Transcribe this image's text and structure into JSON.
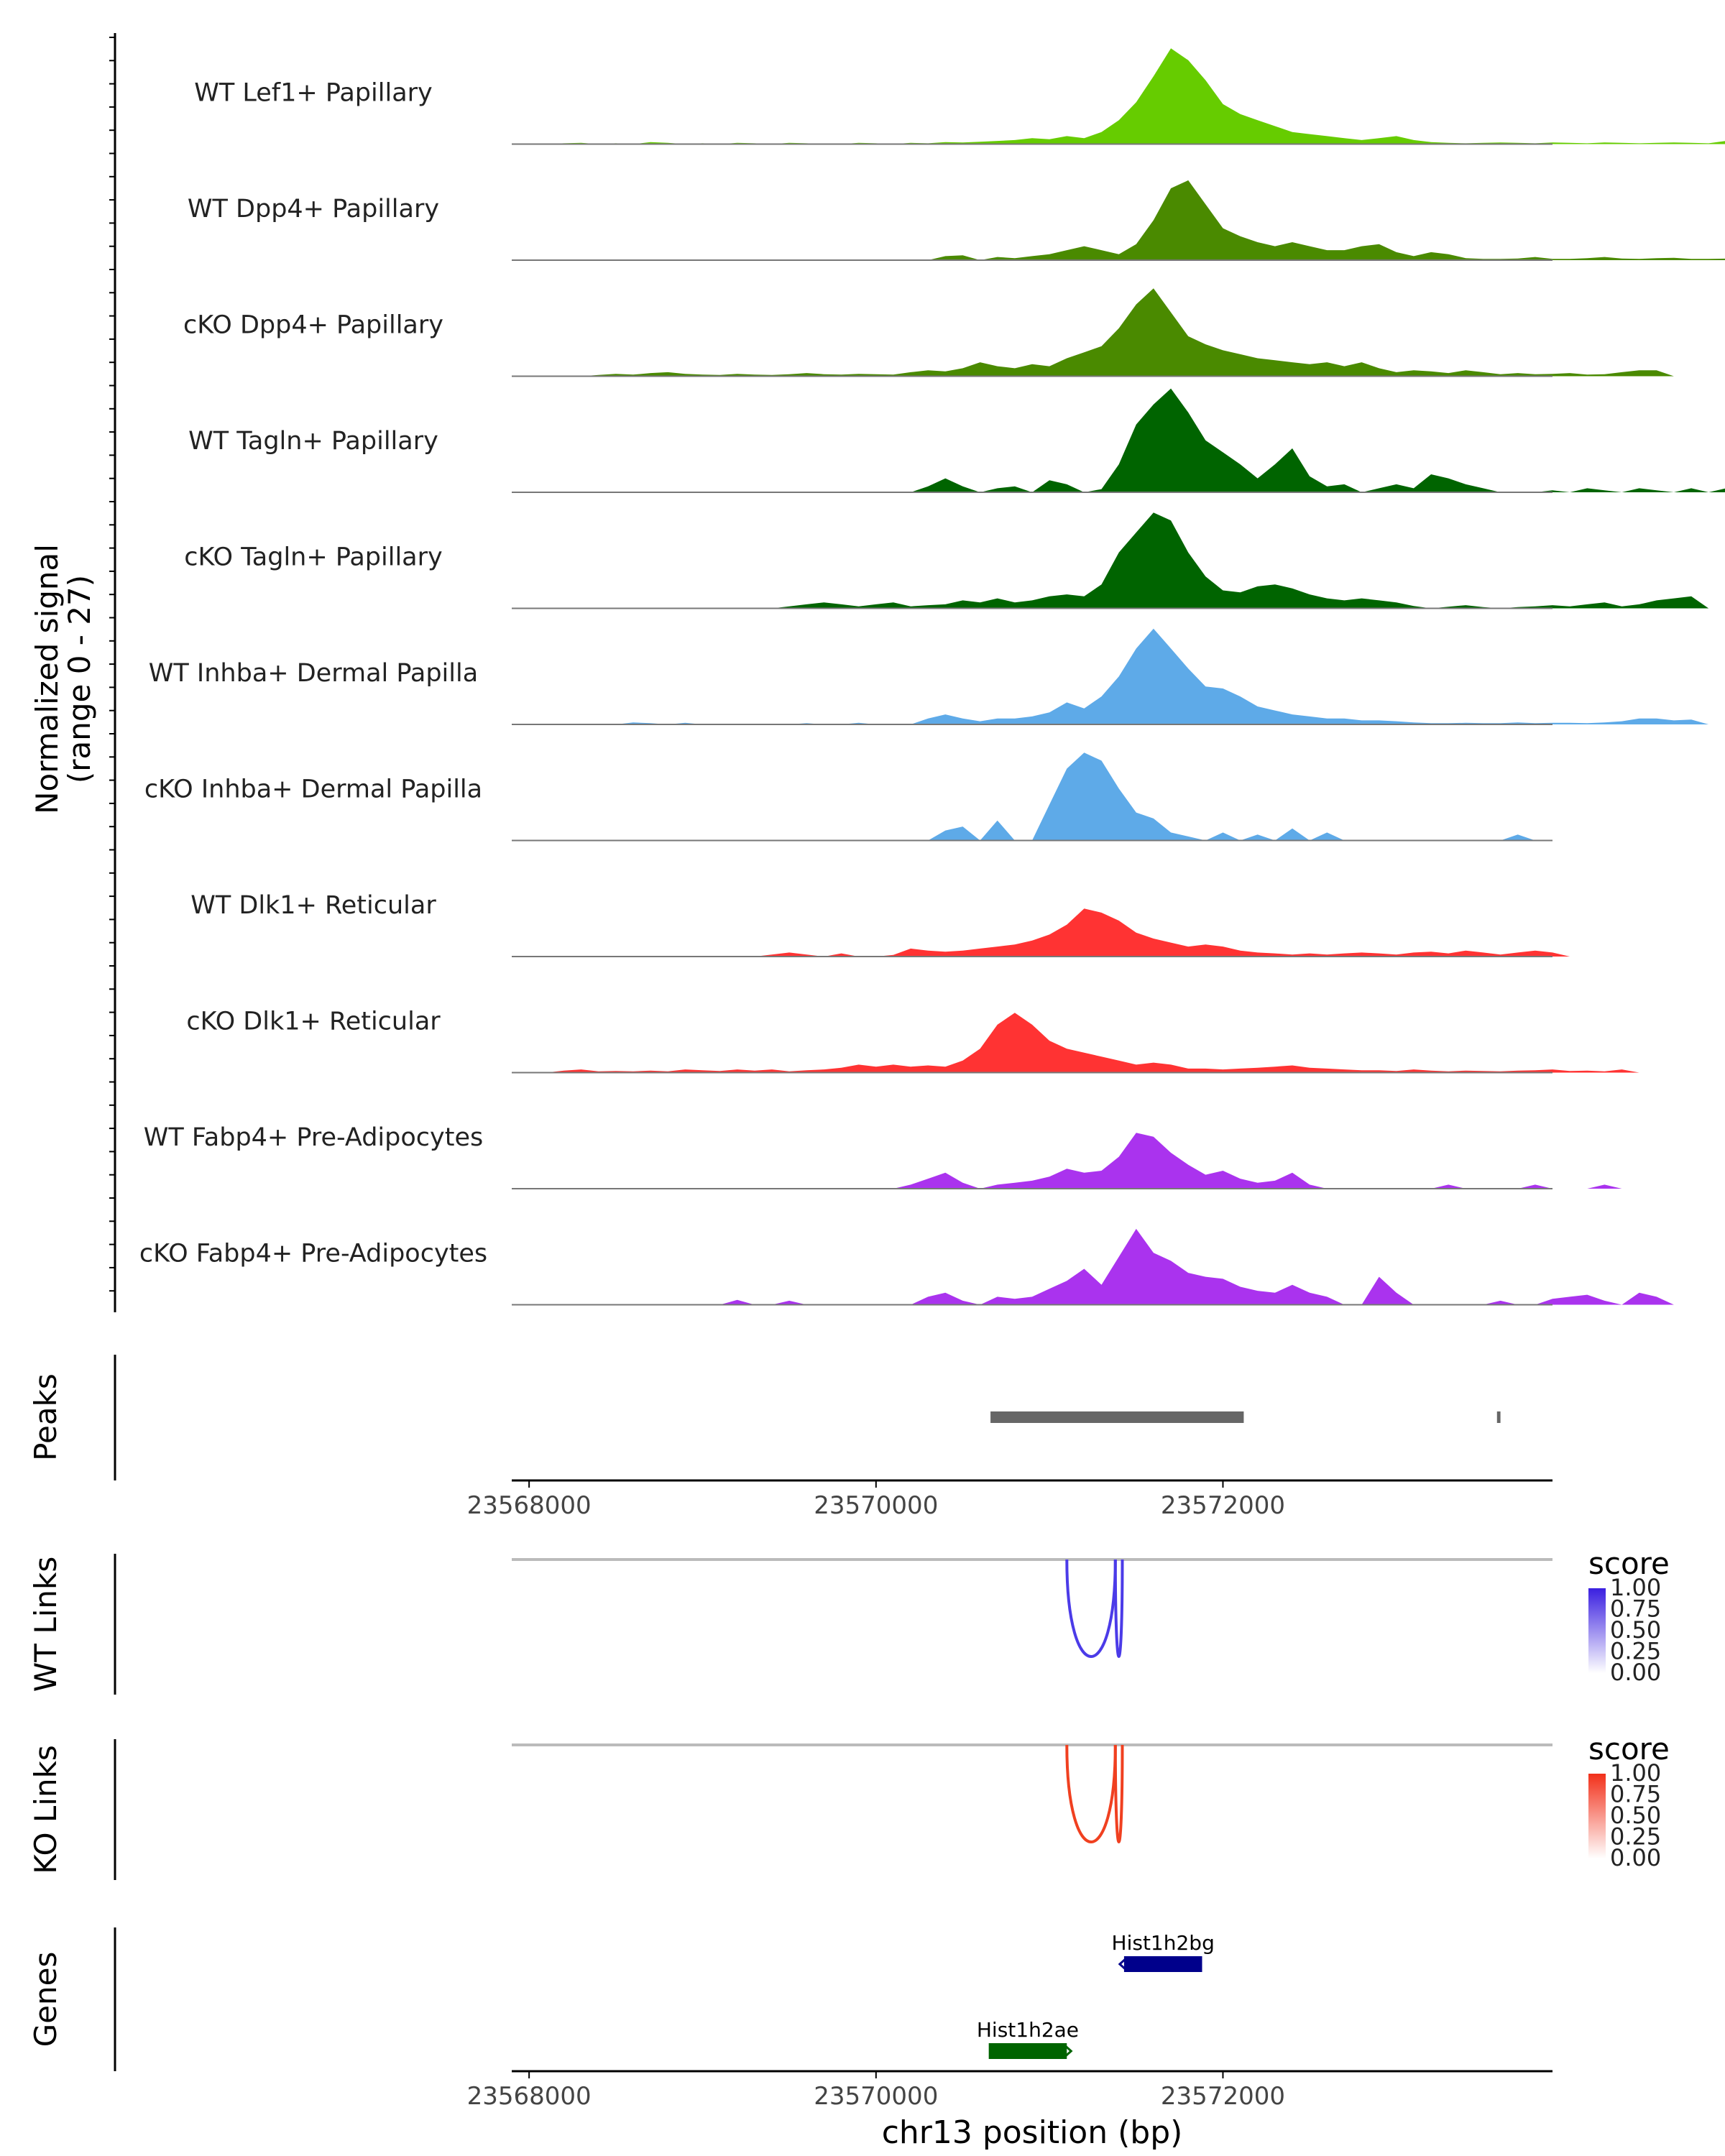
{
  "chart_data": {
    "type": "area",
    "title": "",
    "xlabel": "chr13 position (bp)",
    "ylabel": "Normalized signal",
    "ylabel_range": "(range 0 - 27)",
    "xlim": [
      23567900,
      23573900
    ],
    "ylim": [
      0,
      27
    ],
    "x_ticks": [
      23568000,
      23570000,
      23572000
    ],
    "x_tick_labels": [
      "23568000",
      "23570000",
      "23572000"
    ],
    "x_bins_start": 23568000,
    "x_bins_step": 100,
    "tracks": [
      {
        "name": "WT Lef1+ Papillary",
        "color": "#66CC00",
        "values": [
          0,
          0,
          0.2,
          0.3,
          0,
          0.2,
          0,
          0.5,
          0.3,
          0,
          0.2,
          0,
          0.3,
          0.2,
          0,
          0.3,
          0.2,
          0,
          0,
          0.3,
          0.2,
          0,
          0.3,
          0.2,
          0.5,
          0.4,
          0.6,
          0.8,
          1.0,
          1.5,
          1.2,
          2.0,
          1.5,
          3.0,
          6.0,
          10.5,
          17.0,
          24.0,
          21.0,
          16.0,
          10.0,
          7.5,
          6.0,
          4.5,
          3.0,
          2.5,
          2.0,
          1.5,
          1.0,
          1.5,
          2.0,
          1.0,
          0.5,
          0.3,
          0.2,
          0.3,
          0.4,
          0.3,
          0.2,
          0.4,
          0.3,
          0.2,
          0.4,
          0.3,
          0.2,
          0.3,
          0.4,
          0.3,
          0.2,
          0.8,
          0,
          0,
          0,
          0,
          0,
          0,
          0,
          0,
          0,
          0
        ]
      },
      {
        "name": "WT Dpp4+ Papillary",
        "color": "#4A8A00",
        "values": [
          0,
          0,
          0,
          0,
          0,
          0,
          0,
          0,
          0,
          0,
          0,
          0,
          0,
          0,
          0,
          0,
          0,
          0,
          0,
          0,
          0,
          0,
          0,
          0,
          1.0,
          1.2,
          0,
          0.8,
          0.5,
          1.0,
          1.5,
          2.5,
          3.5,
          2.5,
          1.5,
          4.0,
          10.0,
          18.0,
          20.0,
          14.0,
          8.0,
          6.0,
          4.5,
          3.5,
          4.5,
          3.5,
          2.5,
          2.5,
          3.5,
          4.0,
          2.0,
          1.0,
          2.0,
          1.5,
          0.5,
          0.3,
          0.3,
          0.4,
          0.8,
          0.3,
          0.3,
          0.5,
          0.8,
          0.4,
          0.3,
          0.5,
          0.6,
          0.3,
          0.3,
          0.4,
          0,
          0,
          0,
          0,
          0,
          0,
          0,
          0,
          0,
          0
        ]
      },
      {
        "name": "cKO Dpp4+ Papillary",
        "color": "#4A8A00",
        "values": [
          0,
          0,
          0,
          0,
          0.3,
          0.6,
          0.4,
          0.8,
          1.0,
          0.6,
          0.4,
          0.3,
          0.6,
          0.4,
          0.3,
          0.5,
          0.8,
          0.5,
          0.4,
          0.6,
          0.5,
          0.4,
          1.0,
          1.5,
          1.2,
          2.0,
          3.5,
          2.5,
          2.0,
          3.0,
          2.5,
          4.5,
          6.0,
          7.5,
          12.0,
          18.0,
          22.0,
          16.0,
          10.0,
          8.0,
          6.5,
          5.5,
          4.5,
          4.0,
          3.5,
          3.0,
          3.5,
          2.5,
          3.5,
          2.0,
          1.0,
          1.5,
          1.2,
          0.8,
          1.5,
          1.0,
          0.5,
          0.8,
          0.5,
          0.6,
          0.8,
          0.4,
          0.5,
          1.0,
          1.5,
          1.5,
          0,
          0,
          0,
          0,
          0,
          0,
          0,
          0,
          0,
          0,
          0,
          0,
          0,
          0
        ]
      },
      {
        "name": "WT Tagln+ Papillary",
        "color": "#006400",
        "values": [
          0,
          0,
          0,
          0,
          0,
          0,
          0,
          0,
          0,
          0,
          0,
          0,
          0,
          0,
          0,
          0,
          0,
          0,
          0,
          0,
          0,
          0,
          0,
          1.5,
          3.5,
          1.5,
          0,
          1.0,
          1.5,
          0,
          3.0,
          2.0,
          0,
          0.8,
          7.0,
          17.0,
          22.0,
          26.0,
          20.0,
          13.0,
          10.0,
          7.0,
          3.5,
          7.0,
          11.0,
          4.0,
          1.5,
          2.0,
          0,
          1.0,
          2.0,
          1.0,
          4.5,
          3.5,
          2.0,
          1.0,
          0,
          0,
          0,
          0.5,
          0,
          1.0,
          0.5,
          0,
          1.0,
          0.5,
          0,
          1.0,
          0,
          1.0,
          0,
          0,
          0,
          0,
          0,
          0,
          0,
          0,
          0,
          0
        ]
      },
      {
        "name": "cKO Tagln+ Papillary",
        "color": "#006400",
        "values": [
          0,
          0,
          0,
          0,
          0,
          0,
          0,
          0,
          0,
          0,
          0,
          0,
          0,
          0,
          0,
          0.5,
          1.0,
          1.5,
          1.0,
          0.5,
          1.0,
          1.5,
          0.5,
          0.8,
          1.0,
          2.0,
          1.5,
          2.5,
          1.5,
          2.0,
          3.0,
          3.5,
          3.0,
          6.0,
          14.0,
          19.0,
          24.0,
          22.0,
          14.0,
          8.0,
          4.5,
          4.0,
          5.5,
          6.0,
          5.0,
          3.5,
          2.5,
          2.0,
          2.5,
          2.0,
          1.5,
          0.6,
          0,
          0.4,
          0.8,
          0.3,
          0,
          0.3,
          0.5,
          0.8,
          0.5,
          1.0,
          1.5,
          0.5,
          1.0,
          2.0,
          2.5,
          3.0,
          0,
          0,
          0,
          0,
          0,
          0,
          0,
          0,
          0,
          0,
          0,
          0
        ]
      },
      {
        "name": "WT Inhba+ Dermal Papilla",
        "color": "#5EAAE8",
        "values": [
          0,
          0,
          0,
          0,
          0,
          0,
          0.5,
          0.3,
          0,
          0.4,
          0,
          0,
          0,
          0,
          0,
          0,
          0.3,
          0,
          0,
          0.4,
          0,
          0,
          0,
          1.5,
          2.5,
          1.5,
          0.8,
          1.5,
          1.5,
          2.0,
          3.0,
          5.5,
          4.0,
          7.0,
          12.0,
          19.0,
          24.0,
          19.0,
          14.0,
          9.5,
          9.0,
          7.0,
          4.5,
          3.5,
          2.5,
          2.0,
          1.5,
          1.5,
          1.0,
          1.0,
          0.8,
          0.5,
          0.3,
          0.3,
          0.4,
          0.3,
          0.3,
          0.5,
          0.3,
          0.4,
          0.4,
          0.3,
          0.5,
          0.8,
          1.5,
          1.5,
          1.0,
          1.2,
          0,
          0,
          0,
          0,
          0,
          0,
          0,
          0,
          0,
          0,
          0,
          0
        ]
      },
      {
        "name": "cKO Inhba+ Dermal Papilla",
        "color": "#5EAAE8",
        "values": [
          0,
          0,
          0,
          0,
          0,
          0,
          0,
          0,
          0,
          0,
          0,
          0,
          0,
          0,
          0,
          0,
          0,
          0,
          0,
          0,
          0,
          0,
          0,
          0,
          2.5,
          3.5,
          0,
          5.0,
          0,
          0,
          9.0,
          18.0,
          22.0,
          20.0,
          13.0,
          7.0,
          5.5,
          2.0,
          1.0,
          0,
          2.0,
          0,
          1.5,
          0,
          3.0,
          0,
          2.0,
          0,
          0,
          0,
          0,
          0,
          0,
          0,
          0,
          0,
          0,
          1.5,
          0,
          0,
          0,
          0,
          0,
          0,
          0,
          0,
          0,
          0,
          0,
          0,
          0,
          0,
          0,
          0,
          0,
          0,
          0,
          0,
          0,
          0
        ]
      },
      {
        "name": "WT Dlk1+ Reticular",
        "color": "#FF3333",
        "values": [
          0,
          0,
          0,
          0,
          0,
          0,
          0,
          0,
          0,
          0,
          0,
          0,
          0,
          0,
          0.5,
          1.0,
          0.5,
          0,
          0.8,
          0,
          0,
          0.4,
          2.0,
          1.5,
          1.2,
          1.5,
          2.0,
          2.5,
          3.0,
          4.0,
          5.5,
          8.0,
          12.0,
          11.0,
          9.0,
          6.0,
          4.5,
          3.5,
          2.5,
          3.0,
          2.5,
          1.5,
          1.0,
          0.8,
          0.5,
          0.8,
          0.5,
          0.8,
          1.0,
          0.8,
          0.5,
          1.0,
          1.2,
          0.8,
          1.5,
          1.0,
          0.5,
          1.0,
          1.5,
          1.0,
          0,
          0,
          0,
          0,
          0,
          0,
          0,
          0,
          0,
          0,
          0,
          0,
          0,
          0,
          0,
          0,
          0,
          0,
          0,
          0
        ]
      },
      {
        "name": "cKO Dlk1+ Reticular",
        "color": "#FF3333",
        "values": [
          0,
          0,
          0.5,
          0.8,
          0.3,
          0.4,
          0.3,
          0.5,
          0.3,
          0.8,
          0.6,
          0.4,
          0.8,
          0.5,
          0.8,
          0.3,
          0.6,
          0.8,
          1.2,
          2.0,
          1.5,
          2.0,
          1.5,
          1.8,
          1.5,
          3.0,
          6.0,
          12.0,
          15.0,
          12.0,
          8.0,
          6.0,
          5.0,
          4.0,
          3.0,
          2.0,
          2.5,
          2.0,
          1.0,
          1.0,
          0.8,
          1.0,
          1.2,
          1.5,
          1.8,
          1.2,
          1.0,
          0.8,
          0.6,
          0.6,
          0.4,
          0.8,
          0.5,
          0.3,
          0.5,
          0.4,
          0.3,
          0.5,
          0.6,
          0.8,
          0.4,
          0.5,
          0.3,
          0.8,
          0,
          0,
          0,
          0,
          0,
          0,
          0,
          0,
          0,
          0,
          0,
          0,
          0,
          0,
          0,
          0
        ]
      },
      {
        "name": "WT Fabp4+ Pre-Adipocytes",
        "color": "#AA33EE",
        "values": [
          0,
          0,
          0,
          0,
          0,
          0,
          0,
          0,
          0,
          0,
          0,
          0,
          0,
          0,
          0,
          0,
          0,
          0,
          0,
          0,
          0,
          0,
          1.0,
          2.5,
          4.0,
          1.5,
          0,
          1.0,
          1.5,
          2.0,
          3.0,
          5.0,
          4.0,
          4.5,
          8.0,
          14.0,
          13.0,
          9.0,
          6.0,
          3.5,
          4.5,
          2.5,
          1.5,
          2.0,
          4.0,
          1.0,
          0,
          0,
          0,
          0,
          0,
          0,
          0,
          1.0,
          0,
          0,
          0,
          0,
          1.0,
          0,
          0,
          0,
          1.0,
          0,
          0,
          0,
          0,
          0,
          0,
          0,
          0,
          0,
          0,
          0,
          0,
          0,
          0,
          0,
          0,
          0
        ]
      },
      {
        "name": "cKO Fabp4+ Pre-Adipocytes",
        "color": "#AA33EE",
        "values": [
          0,
          0,
          0,
          0,
          0,
          0,
          0,
          0,
          0,
          0,
          0,
          0,
          1.2,
          0,
          0,
          1.0,
          0,
          0,
          0,
          0,
          0,
          0,
          0,
          2.0,
          3.0,
          1.0,
          0,
          2.0,
          1.5,
          2.0,
          4.0,
          6.0,
          9.0,
          5.0,
          12.0,
          19.0,
          13.0,
          11.0,
          8.0,
          7.0,
          6.5,
          4.5,
          3.5,
          3.0,
          5.0,
          3.0,
          2.0,
          0,
          0,
          7.0,
          3.0,
          0,
          0,
          0,
          0,
          0,
          1.0,
          0,
          0,
          1.5,
          2.0,
          2.5,
          1.0,
          0,
          3.0,
          2.0,
          0,
          0,
          0,
          0,
          0,
          0,
          0,
          0,
          0,
          0,
          0,
          0,
          0,
          0
        ]
      }
    ],
    "peaks_label": "Peaks",
    "peaks": [
      [
        23570660,
        23572120
      ],
      [
        23573580,
        23573600
      ]
    ],
    "links": [
      {
        "label": "WT Links",
        "legend_title": "score",
        "color": "#4B3BE8",
        "legend_colors": [
          "#FFFFFF",
          "#3A1FE0"
        ],
        "legend_ticks": [
          "0.00",
          "0.25",
          "0.50",
          "0.75",
          "1.00"
        ],
        "arcs": [
          [
            23571100,
            23571380
          ],
          [
            23571380,
            23571420
          ]
        ]
      },
      {
        "label": "KO Links",
        "legend_title": "score",
        "color": "#F04020",
        "legend_colors": [
          "#FFFFFF",
          "#F2301A"
        ],
        "legend_ticks": [
          "0.00",
          "0.25",
          "0.50",
          "0.75",
          "1.00"
        ],
        "arcs": [
          [
            23571100,
            23571380
          ],
          [
            23571380,
            23571420
          ]
        ]
      }
    ],
    "genes_label": "Genes",
    "genes": [
      {
        "name": "Hist1h2bg",
        "start": 23571430,
        "end": 23571880,
        "strand": "-",
        "color": "#00008B",
        "row": 0
      },
      {
        "name": "Hist1h2ae",
        "start": 23570650,
        "end": 23571100,
        "strand": "+",
        "color": "#006400",
        "row": 1
      }
    ]
  }
}
